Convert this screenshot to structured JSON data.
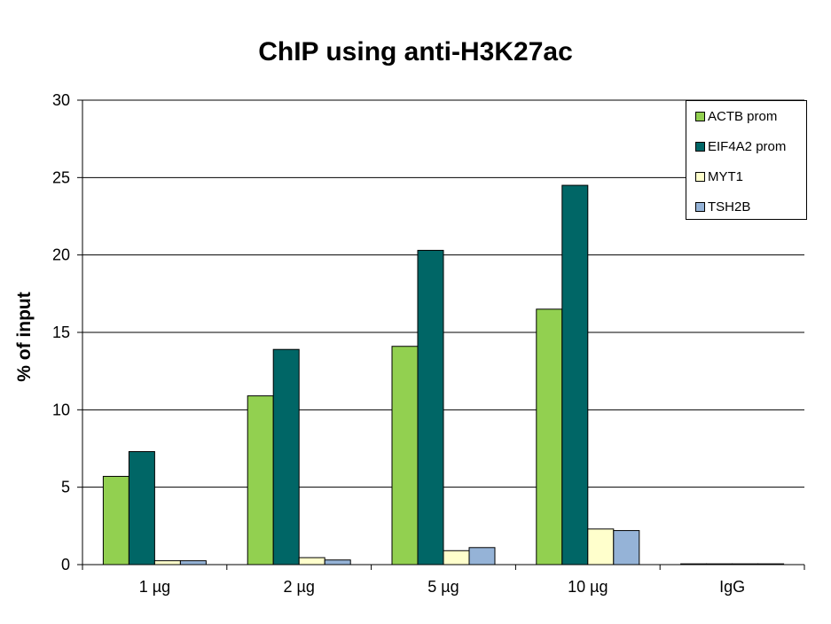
{
  "chart_data": {
    "type": "bar",
    "title": "ChIP using anti-H3K27ac",
    "ylabel": "% of input",
    "xlabel": "",
    "categories": [
      "1 µg",
      "2 µg",
      "5 µg",
      "10 µg",
      "IgG"
    ],
    "ylim": [
      0,
      30
    ],
    "yticks": [
      0,
      5,
      10,
      15,
      20,
      25,
      30
    ],
    "grid": true,
    "legend_position": "top-right",
    "series": [
      {
        "name": "ACTB prom",
        "color": "#92d050",
        "values": [
          5.7,
          10.9,
          14.1,
          16.5,
          0.05
        ]
      },
      {
        "name": "EIF4A2 prom",
        "color": "#006666",
        "values": [
          7.3,
          13.9,
          20.3,
          24.5,
          0.05
        ]
      },
      {
        "name": "MYT1",
        "color": "#ffffcc",
        "values": [
          0.25,
          0.45,
          0.9,
          2.3,
          0.05
        ]
      },
      {
        "name": "TSH2B",
        "color": "#95b3d7",
        "values": [
          0.25,
          0.3,
          1.1,
          2.2,
          0.05
        ]
      }
    ]
  }
}
